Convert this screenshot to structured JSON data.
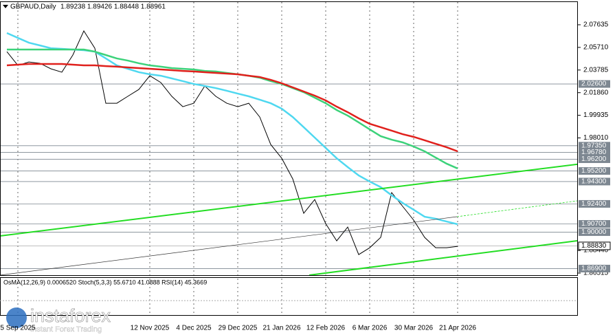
{
  "chart_data": {
    "type": "line",
    "title": "GBPAUD,Daily",
    "ohlc": "1.89238 1.89426 1.88448 1.88961",
    "indicators": "OsMA(12,26,9) 0.0006520  Stoch(5,3,3) 55.6710 41.0888  RSI(14) 45.3669",
    "indicator_axis_labels": [
      "0.009627",
      "70",
      "30",
      "80",
      "20",
      "0",
      "-0.008156"
    ],
    "watermark": {
      "brand": "instaforex",
      "tagline": "Instant Forex Trading"
    },
    "categories": [
      null,
      "5 Sep 2025",
      null,
      null,
      null,
      null,
      null,
      null,
      null,
      null,
      null,
      null,
      null,
      "12 Nov 2025",
      null,
      null,
      null,
      "4 Dec 2025",
      null,
      null,
      null,
      "29 Dec 2025",
      null,
      null,
      null,
      "21 Jan 2026",
      null,
      null,
      null,
      "12 Feb 2026",
      null,
      null,
      null,
      "6 Mar 2026",
      null,
      null,
      null,
      "30 Mar 2026",
      null,
      null,
      null,
      "21 Apr 2026"
    ],
    "series": [
      {
        "color": "#000000",
        "values": [
          2.0535,
          2.0418,
          2.0447,
          2.0436,
          2.0389,
          2.036,
          2.0506,
          2.0711,
          2.0564,
          2.0096,
          2.0096,
          2.0155,
          2.0213,
          2.033,
          2.0272,
          2.0155,
          2.0067,
          2.0096,
          2.0243,
          2.0155,
          2.0096,
          2.0067,
          2.0096,
          1.9979,
          1.9745,
          1.9628,
          1.9453,
          1.916,
          1.9277,
          1.9072,
          1.8926,
          1.9043,
          1.8809,
          1.8867,
          1.8955,
          1.9336,
          1.9219,
          1.9102,
          1.8955,
          1.8867,
          1.8867,
          1.8879
        ]
      },
      {
        "color": "#4fd8f0",
        "values": [
          2.0693,
          2.0652,
          2.0611,
          2.0588,
          2.0564,
          2.0559,
          2.0553,
          2.0547,
          2.0535,
          2.0477,
          2.0418,
          2.0389,
          2.036,
          2.0342,
          2.033,
          2.0307,
          2.0284,
          2.026,
          2.0243,
          2.0225,
          2.0202,
          2.0178,
          2.0155,
          2.0126,
          2.0096,
          2.005,
          1.9979,
          1.9892,
          1.9804,
          1.9716,
          1.9628,
          1.9553,
          1.9482,
          1.943,
          1.9383,
          1.9313,
          1.9248,
          1.919,
          1.9131,
          1.9114,
          1.909,
          1.9067
        ]
      },
      {
        "color": "#3cd27a",
        "values": [
          2.0553,
          2.0553,
          2.0553,
          2.0553,
          2.0553,
          2.0553,
          2.0553,
          2.0553,
          2.0535,
          2.0506,
          2.0477,
          2.0459,
          2.0436,
          2.0418,
          2.0407,
          2.0395,
          2.0389,
          2.0383,
          2.0371,
          2.0366,
          2.0354,
          2.0342,
          2.033,
          2.0313,
          2.0284,
          2.026,
          2.0225,
          2.019,
          2.0143,
          2.0096,
          2.0038,
          1.9991,
          1.9933,
          1.9874,
          1.9816,
          1.9786,
          1.9763,
          1.9728,
          1.9687,
          1.9634,
          1.9582,
          1.9541
        ]
      },
      {
        "color": "#e0201c",
        "values": [
          2.0418,
          2.0424,
          2.043,
          2.043,
          2.043,
          2.043,
          2.0424,
          2.0418,
          2.0418,
          2.0412,
          2.0407,
          2.0401,
          2.0395,
          2.0389,
          2.0383,
          2.0377,
          2.0371,
          2.0366,
          2.036,
          2.0354,
          2.0348,
          2.0342,
          2.033,
          2.0319,
          2.0295,
          2.0266,
          2.0231,
          2.0196,
          2.0161,
          2.012,
          2.0067,
          2.002,
          1.9968,
          1.9921,
          1.9892,
          1.9863,
          1.9833,
          1.981,
          1.9781,
          1.9751,
          1.9722,
          1.9687
        ]
      }
    ],
    "ylim": [
      1.8634,
      2.0974
    ],
    "yticks": [
      {
        "value": 2.07635,
        "label": "2.07635"
      },
      {
        "value": 2.0571,
        "label": "2.05710"
      },
      {
        "value": 2.03785,
        "label": "2.03785"
      },
      {
        "value": 2.0186,
        "label": "2.01860"
      },
      {
        "value": 1.99935,
        "label": "1.99935"
      },
      {
        "value": 1.9801,
        "label": "1.98010"
      },
      {
        "value": 1.8844,
        "label": "1.88440"
      },
      {
        "value": 1.86515,
        "label": "1.86515"
      }
    ],
    "levels": [
      {
        "value": 2.026,
        "label": "2.02600"
      },
      {
        "value": 1.9735,
        "label": "1.97350"
      },
      {
        "value": 1.9678,
        "label": "1.96780"
      },
      {
        "value": 1.962,
        "label": "1.96200"
      },
      {
        "value": 1.952,
        "label": "1.95200"
      },
      {
        "value": 1.943,
        "label": "1.94300"
      },
      {
        "value": 1.924,
        "label": "1.92400"
      },
      {
        "value": 1.907,
        "label": "1.90700"
      },
      {
        "value": 1.9,
        "label": "1.90000"
      },
      {
        "value": 1.869,
        "label": "1.86900"
      }
    ],
    "current_price": {
      "value": 1.8883,
      "label": "1.88830"
    },
    "grid": true
  }
}
